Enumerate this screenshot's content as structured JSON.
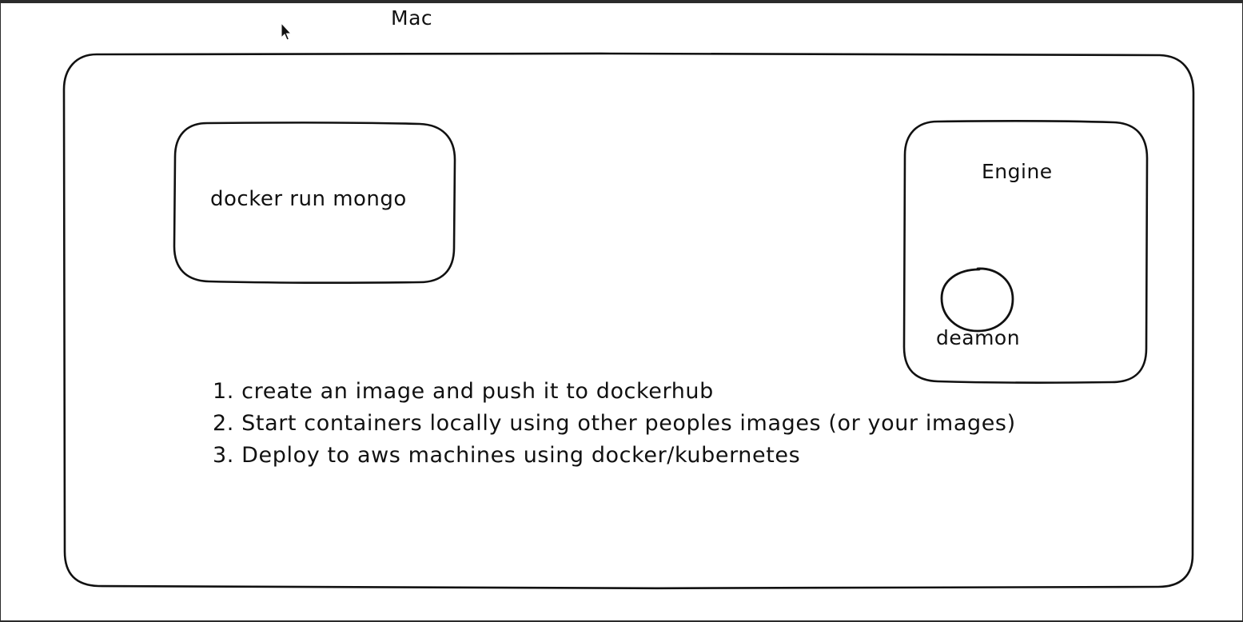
{
  "diagram": {
    "title": "Mac",
    "command_box": {
      "label": "docker run mongo"
    },
    "engine_box": {
      "label": "Engine",
      "daemon": {
        "label": "deamon"
      }
    },
    "steps": [
      "1. create an image and push it to dockerhub",
      "2. Start containers locally using other peoples images (or your images)",
      "3. Deploy to aws machines using docker/kubernetes"
    ],
    "cursor_icon": "mouse-pointer-icon"
  }
}
